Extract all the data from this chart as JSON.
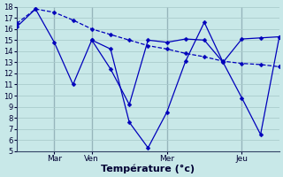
{
  "background_color": "#c8e8e8",
  "grid_color": "#aacccc",
  "line_color": "#0000bb",
  "xlabel": "Température (°c)",
  "xlabel_fontsize": 8,
  "ylim": [
    5,
    18
  ],
  "ytick_min": 5,
  "ytick_max": 18,
  "xmin": 0,
  "xmax": 56,
  "vline_positions": [
    8,
    16,
    32,
    48
  ],
  "xtick_positions": [
    8,
    16,
    32,
    48
  ],
  "xtick_labels": [
    "Mar",
    "Ven",
    "Mer",
    "Jeu"
  ],
  "s1_x": [
    0,
    4,
    8,
    12,
    16,
    20,
    24,
    28,
    32,
    36,
    40,
    44,
    48,
    52,
    56
  ],
  "s1_y": [
    16.5,
    17.8,
    17.5,
    16.8,
    16.0,
    15.5,
    15.0,
    14.5,
    14.2,
    13.8,
    13.5,
    13.1,
    12.9,
    12.8,
    12.6
  ],
  "s2_x": [
    0,
    4,
    8,
    12,
    16,
    20,
    24,
    28,
    32,
    36,
    40,
    44,
    48,
    52,
    56
  ],
  "s2_y": [
    16.2,
    17.8,
    14.8,
    11.0,
    15.0,
    12.4,
    9.2,
    15.0,
    14.8,
    15.1,
    15.0,
    13.0,
    15.1,
    15.2,
    15.3
  ],
  "s3_x": [
    16,
    20,
    24,
    28,
    32,
    36,
    40,
    44,
    48,
    52,
    56
  ],
  "s3_y": [
    15.0,
    14.2,
    7.6,
    5.3,
    8.5,
    13.1,
    16.6,
    13.0,
    9.8,
    6.5,
    15.3
  ],
  "s1_style": "--",
  "s2_style": "-",
  "s3_style": "-"
}
